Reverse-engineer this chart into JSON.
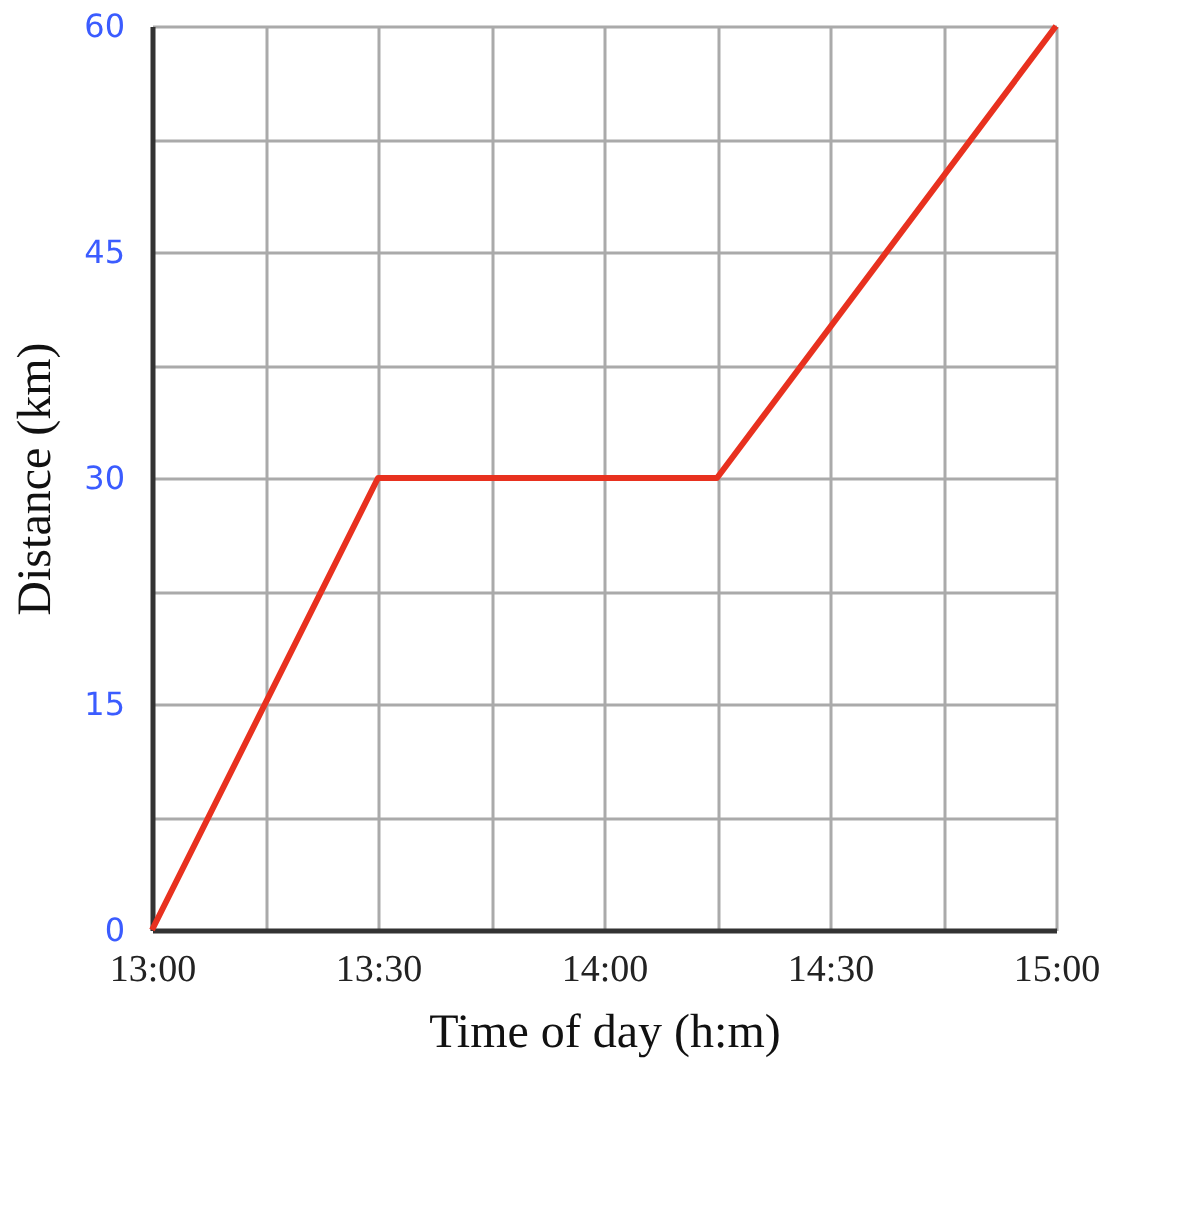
{
  "chart_data": {
    "type": "line",
    "xlabel": "Time of day (h:m)",
    "ylabel": "Distance (km)",
    "x": [
      13,
      13.5,
      14.25,
      15
    ],
    "series": [
      {
        "color": "#e8311f",
        "values": [
          0,
          30,
          30,
          60
        ]
      }
    ],
    "xlim": [
      13,
      15
    ],
    "xticks": [
      {
        "value": 13,
        "label": "13:00"
      },
      {
        "value": 13.25,
        "label": null
      },
      {
        "value": 13.5,
        "label": "13:30"
      },
      {
        "value": 13.75,
        "label": null
      },
      {
        "value": 14,
        "label": "14:00"
      },
      {
        "value": 14.25,
        "label": null
      },
      {
        "value": 14.5,
        "label": "14:30"
      },
      {
        "value": 14.75,
        "label": null
      },
      {
        "value": 15,
        "label": "15:00"
      }
    ],
    "ylim": [
      0,
      60
    ],
    "yticks": [
      0,
      {
        "value": 7.5,
        "label": null
      },
      15,
      {
        "value": 22.5,
        "label": null
      },
      30,
      {
        "value": 37.5,
        "label": null
      },
      45,
      {
        "value": 52.5,
        "label": null
      },
      60
    ],
    "grid": true,
    "marker": "none",
    "line_style": "solid"
  }
}
